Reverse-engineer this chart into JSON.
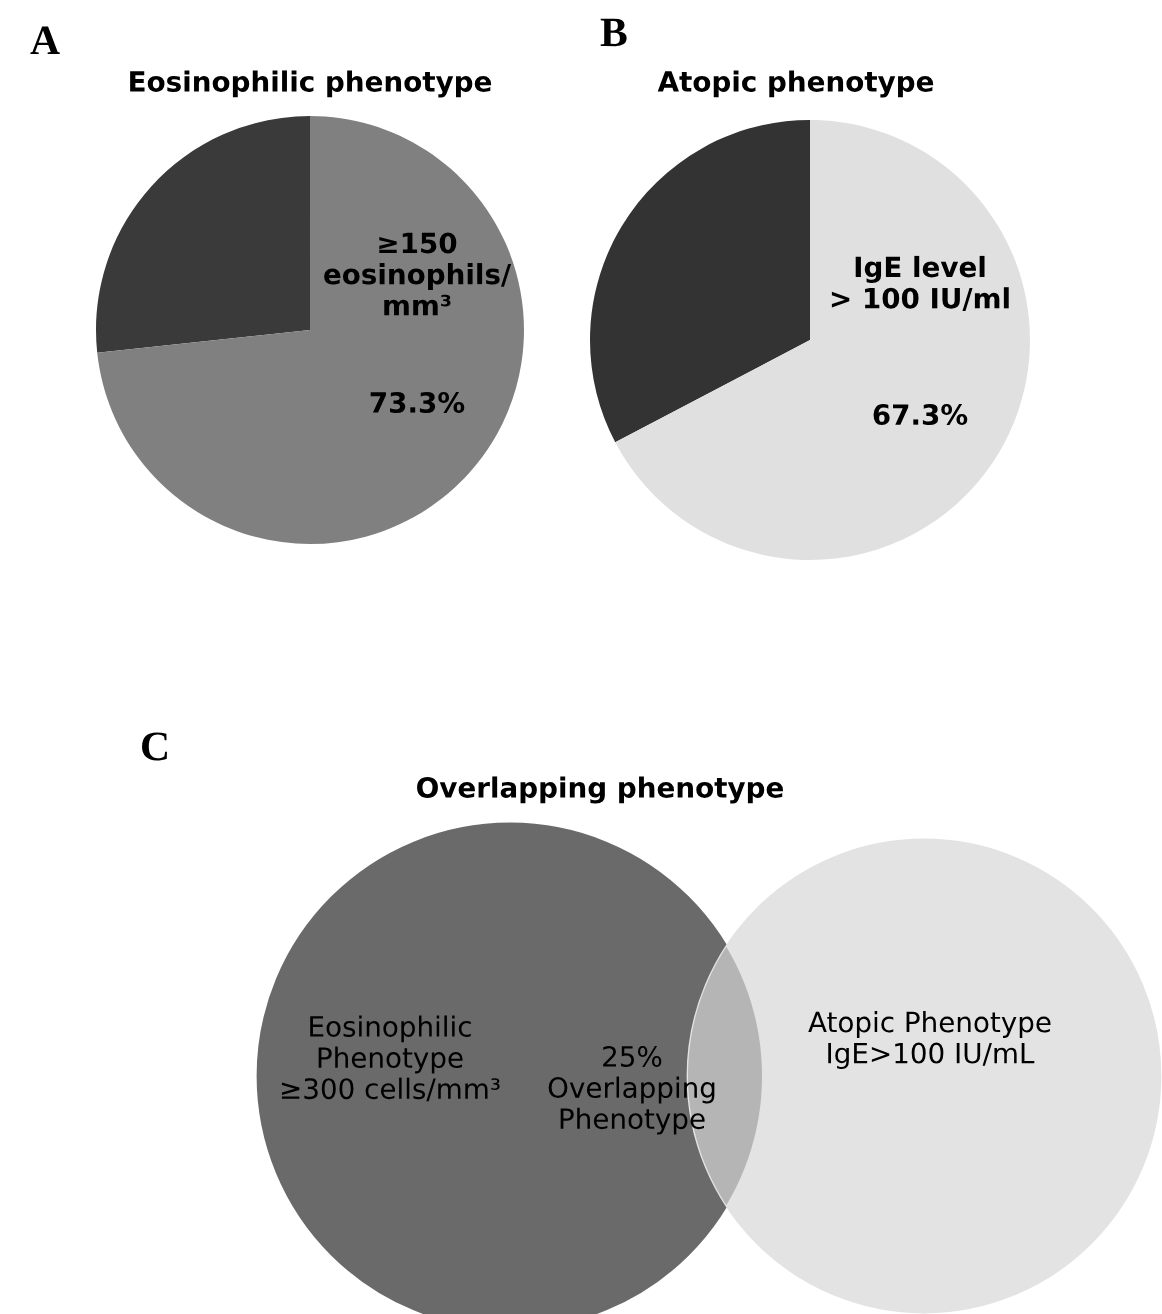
{
  "chart_data": [
    {
      "type": "pie",
      "title": "Eosinophilic phenotype",
      "annotations": [
        "A"
      ],
      "categories": [
        null,
        "≥150\neosinophils/\nmm³"
      ],
      "values": [
        26.7,
        73.3
      ],
      "value_labels": [
        null,
        "73.3%"
      ],
      "colors": [
        "#3a3a3a",
        "#808080"
      ]
    },
    {
      "type": "pie",
      "title": "Atopic phenotype",
      "annotations": [
        "B"
      ],
      "categories": [
        null,
        "IgE level\n> 100 IU/ml"
      ],
      "values": [
        32.7,
        67.3
      ],
      "value_labels": [
        null,
        "67.3%"
      ],
      "colors": [
        "#333333",
        "#e0e0e0"
      ]
    },
    {
      "type": "other",
      "title": "Overlapping phenotype",
      "annotations": [
        "C"
      ],
      "categories": [
        "Eosinophilic\nPhenotype\n≥300 cells/mm³",
        "25%\nOverlapping\nPhenotype",
        "Atopic Phenotype\nIgE>100 IU/mL"
      ],
      "colors": [
        "#6a6a6a",
        "#b5b5b5",
        "#e3e3e3"
      ]
    }
  ]
}
